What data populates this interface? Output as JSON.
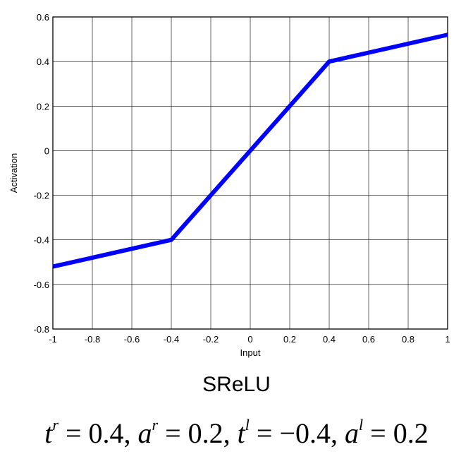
{
  "chart_data": {
    "type": "line",
    "title": "SReLU",
    "xlabel": "Input",
    "ylabel": "Activation",
    "xlim": [
      -1,
      1
    ],
    "ylim": [
      -0.8,
      0.6
    ],
    "grid": true,
    "x_ticks": [
      -1,
      -0.8,
      -0.6,
      -0.4,
      -0.2,
      0,
      0.2,
      0.4,
      0.6,
      0.8,
      1
    ],
    "x_tick_labels": [
      "-1",
      "-0.8",
      "-0.6",
      "-0.4",
      "-0.2",
      "0",
      "0.2",
      "0.4",
      "0.6",
      "0.8",
      "1"
    ],
    "y_ticks": [
      -0.8,
      -0.6,
      -0.4,
      -0.2,
      0,
      0.2,
      0.4,
      0.6
    ],
    "y_tick_labels": [
      "-0.8",
      "-0.6",
      "-0.4",
      "-0.2",
      "0",
      "0.2",
      "0.4",
      "0.6"
    ],
    "series": [
      {
        "color": "#0000ff",
        "x": [
          -1,
          -0.4,
          0.4,
          1
        ],
        "y": [
          -0.52,
          -0.4,
          0.4,
          0.52
        ]
      }
    ]
  },
  "formula": {
    "t_r_symbol": "t",
    "t_r_sup": "r",
    "t_r_value": "= 0.4,",
    "a_r_symbol": "a",
    "a_r_sup": "r",
    "a_r_value": "= 0.2,",
    "t_l_symbol": "t",
    "t_l_sup": "l",
    "t_l_value": "= −0.4,",
    "a_l_symbol": "a",
    "a_l_sup": "l",
    "a_l_value": "= 0.2"
  }
}
